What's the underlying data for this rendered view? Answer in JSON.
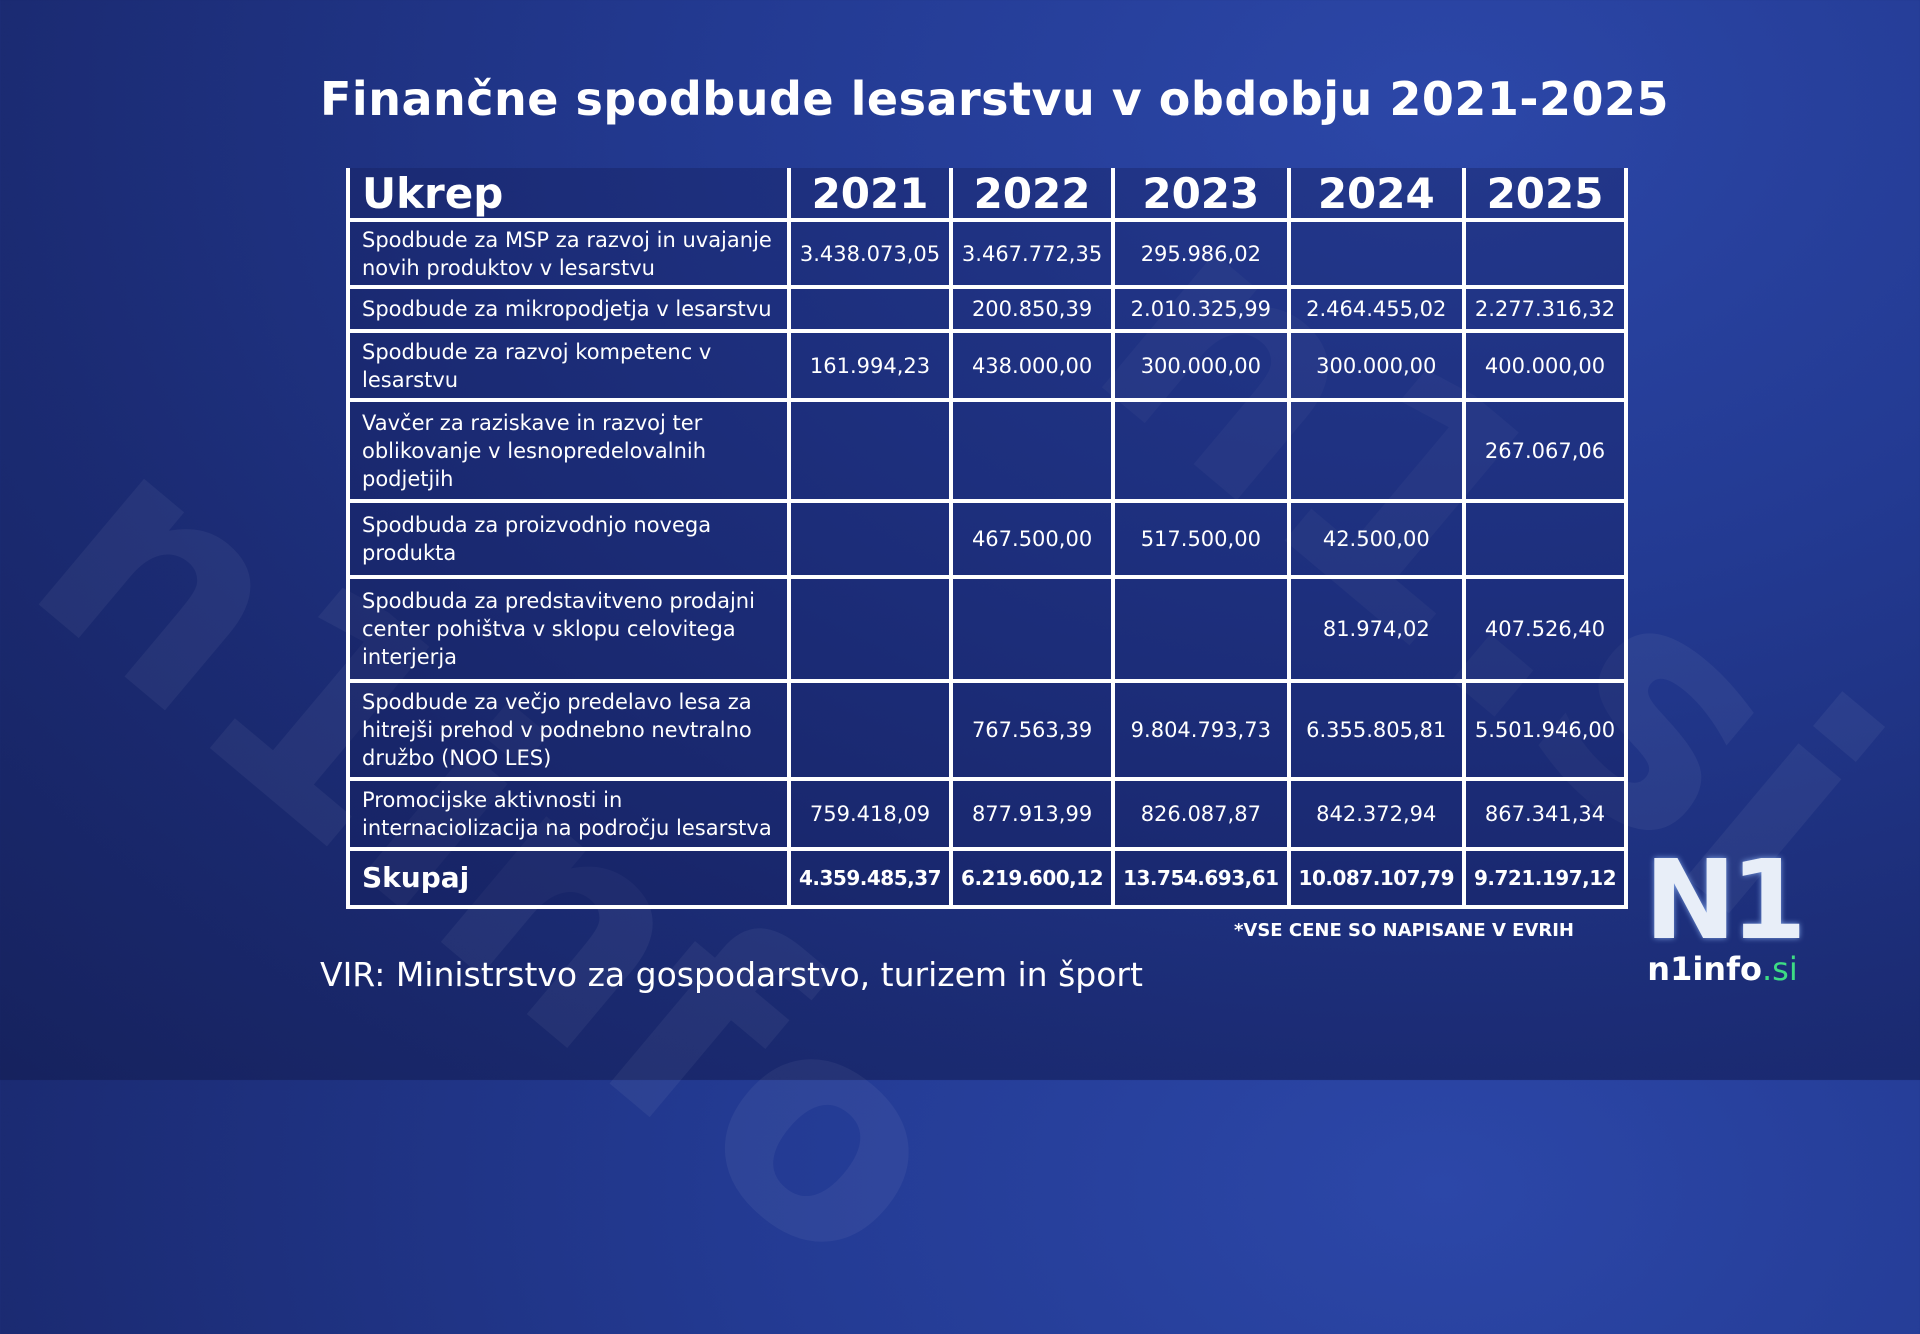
{
  "title": "Finančne spodbude lesarstvu v obdobju 2021-2025",
  "table": {
    "headers": [
      "Ukrep",
      "2021",
      "2022",
      "2023",
      "2024",
      "2025"
    ],
    "rows": [
      {
        "label": "Spodbude za MSP za razvoj in uvajanje novih produktov v lesarstvu",
        "values": [
          "3.438.073,05",
          "3.467.772,35",
          "295.986,02",
          "",
          ""
        ]
      },
      {
        "label": "Spodbude za mikropodjetja v lesarstvu",
        "values": [
          "",
          "200.850,39",
          "2.010.325,99",
          "2.464.455,02",
          "2.277.316,32"
        ]
      },
      {
        "label": "Spodbude za razvoj kompetenc v lesarstvu",
        "values": [
          "161.994,23",
          "438.000,00",
          "300.000,00",
          "300.000,00",
          "400.000,00"
        ]
      },
      {
        "label": "Vavčer za raziskave in razvoj ter oblikovanje v lesnopredelovalnih podjetjih",
        "values": [
          "",
          "",
          "",
          "",
          "267.067,06"
        ]
      },
      {
        "label": "Spodbuda za proizvodnjo novega produkta",
        "values": [
          "",
          "467.500,00",
          "517.500,00",
          "42.500,00",
          ""
        ]
      },
      {
        "label": "Spodbuda za predstavitveno prodajni center pohištva v sklopu celovitega interjerja",
        "values": [
          "",
          "",
          "",
          "81.974,02",
          "407.526,40"
        ]
      },
      {
        "label": "Spodbude za večjo predelavo lesa za hitrejši prehod v podnebno nevtralno družbo (NOO LES)",
        "values": [
          "",
          "767.563,39",
          "9.804.793,73",
          "6.355.805,81",
          "5.501.946,00"
        ]
      },
      {
        "label": "Promocijske aktivnosti in internaciolizacija na področju lesarstva",
        "values": [
          "759.418,09",
          "877.913,99",
          "826.087,87",
          "842.372,94",
          "867.341,34"
        ]
      }
    ],
    "total": {
      "label": "Skupaj",
      "values": [
        "4.359.485,37",
        "6.219.600,12",
        "13.754.693,61",
        "10.087.107,79",
        "9.721.197,12"
      ]
    }
  },
  "note": "*VSE CENE SO NAPISANE V EVRIH",
  "source": "VIR: Ministrstvo za gospodarstvo, turizem in šport",
  "logo": {
    "mark": "N1",
    "site_main": "n1info",
    "site_tld": ".si"
  },
  "colors": {
    "background": "#1f3388",
    "accent": "#3ddc84"
  }
}
